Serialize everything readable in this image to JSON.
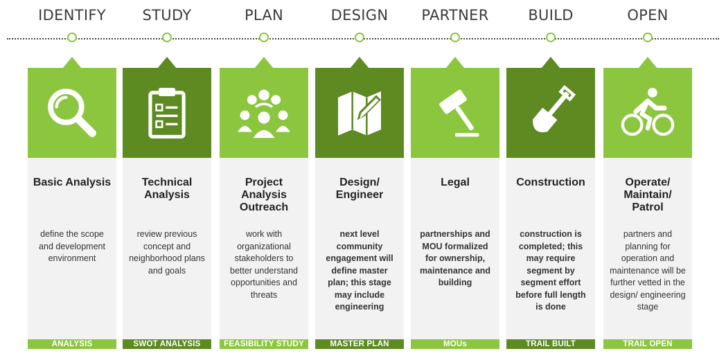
{
  "colors": {
    "light_green": "#8cc63f",
    "dark_green": "#5e8a22",
    "card_bg": "#f2f2f2"
  },
  "stages": [
    {
      "label": "IDENTIFY",
      "icon": "magnifier-icon",
      "title": "Basic Analysis",
      "desc": "define the scope and development environment",
      "footer": "ANALYSIS"
    },
    {
      "label": "STUDY",
      "icon": "clipboard-icon",
      "title": "Technical Analysis",
      "desc": "review previous concept and neighborhood plans and goals",
      "footer": "SWOT ANALYSIS"
    },
    {
      "label": "PLAN",
      "icon": "group-icon",
      "title": "Project Analysis Outreach",
      "desc": "work with organizational stakeholders to better understand opportunities and threats",
      "footer": "FEASIBILITY STUDY"
    },
    {
      "label": "DESIGN",
      "icon": "map-pencil-icon",
      "title": "Design/ Engineer",
      "desc": "next level community engagement will define master plan; this stage may include engineering",
      "footer": "MASTER PLAN"
    },
    {
      "label": "PARTNER",
      "icon": "gavel-icon",
      "title": "Legal",
      "desc": "partnerships and MOU formalized for ownership, maintenance and building",
      "footer": "MOUs"
    },
    {
      "label": "BUILD",
      "icon": "shovel-icon",
      "title": "Construction",
      "desc": "construction is completed; this may require segment by segment effort before full length is done",
      "footer": "TRAIL BUILT"
    },
    {
      "label": "OPEN",
      "icon": "cyclist-icon",
      "title": "Operate/ Maintain/ Patrol",
      "desc": "partners and planning for operation and maintenance will be further vetted in the design/ engineering stage",
      "footer": "TRAIL OPEN"
    }
  ]
}
